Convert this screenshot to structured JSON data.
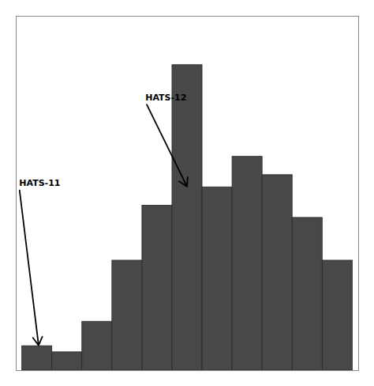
{
  "chart_data": {
    "type": "histogram",
    "bins": [
      -0.6,
      -0.5,
      -0.4,
      -0.3,
      -0.2,
      -0.1,
      0.0,
      0.1,
      0.2,
      0.3,
      0.4,
      0.5
    ],
    "values": [
      4,
      3,
      8,
      18,
      27,
      50,
      30,
      35,
      32,
      25,
      18
    ],
    "color": "#484848",
    "xlim": [
      -0.62,
      0.52
    ],
    "ylim": [
      0,
      58
    ],
    "tick_labels": false,
    "annotations": [
      {
        "text": "HATS-12",
        "x": -0.05,
        "y": 30,
        "text_x": -0.19,
        "text_y": 44
      },
      {
        "text": "HATS-11",
        "x": -0.545,
        "y": 4,
        "text_x": -0.61,
        "text_y": 30
      }
    ]
  }
}
